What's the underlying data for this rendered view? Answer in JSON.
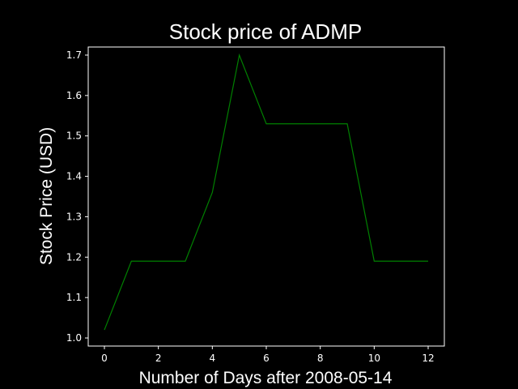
{
  "chart_data": {
    "type": "line",
    "title": "Stock price of ADMP",
    "xlabel": "Number of Days after 2008-05-14",
    "ylabel": "Stock Price (USD)",
    "xlim": [
      -0.6,
      12.6
    ],
    "ylim": [
      0.98,
      1.72
    ],
    "xticks": [
      0,
      2,
      4,
      6,
      8,
      10,
      12
    ],
    "xtick_labels": [
      "0",
      "2",
      "4",
      "6",
      "8",
      "10",
      "12"
    ],
    "yticks": [
      1.0,
      1.1,
      1.2,
      1.3,
      1.4,
      1.5,
      1.6,
      1.7
    ],
    "ytick_labels": [
      "1.0",
      "1.1",
      "1.2",
      "1.3",
      "1.4",
      "1.5",
      "1.6",
      "1.7"
    ],
    "grid": false,
    "series": [
      {
        "x": [
          0,
          1,
          2,
          3,
          4,
          5,
          6,
          7,
          8,
          9,
          10,
          11,
          12
        ],
        "values": [
          1.02,
          1.19,
          1.19,
          1.19,
          1.36,
          1.7,
          1.53,
          1.53,
          1.53,
          1.53,
          1.19,
          1.19,
          1.19
        ],
        "color": "#008000"
      }
    ],
    "colors": {
      "background": "#000000",
      "axes": "#ffffff",
      "text": "#ffffff",
      "line": "#008000"
    }
  }
}
